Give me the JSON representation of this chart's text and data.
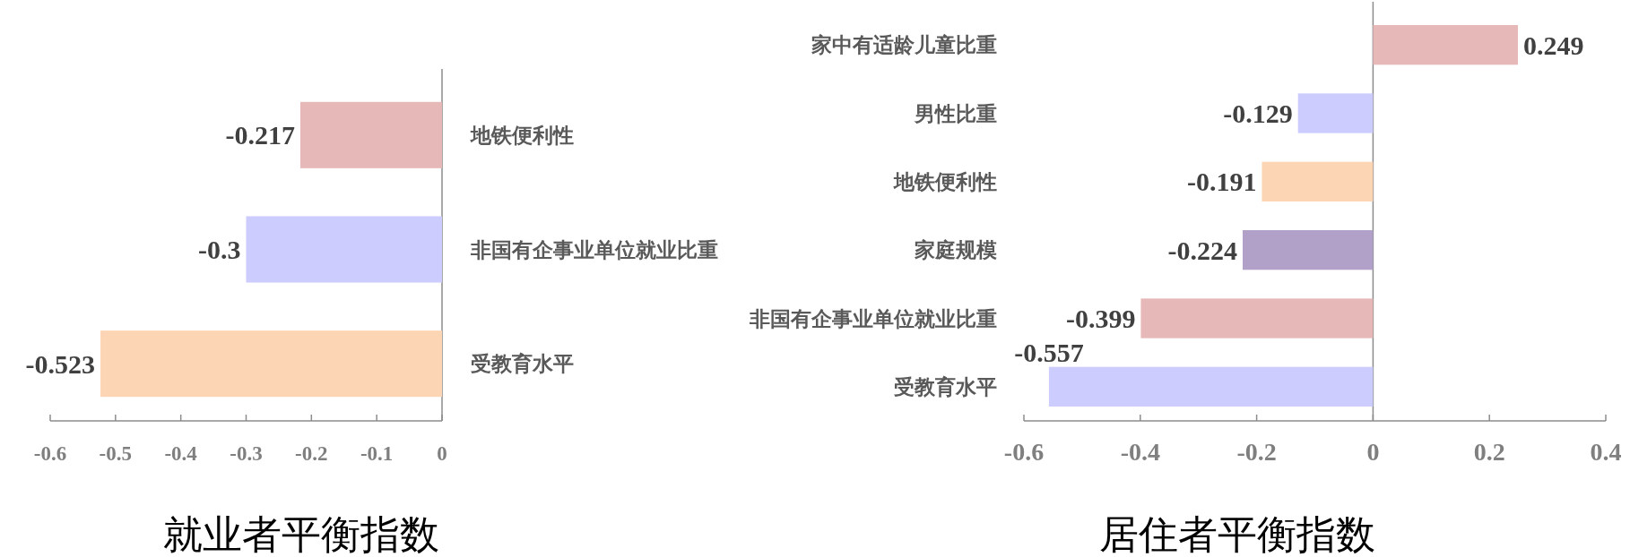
{
  "chart_data": [
    {
      "type": "bar",
      "orientation": "horizontal",
      "xlabel": "就业者平衡指数",
      "categories": [
        "地铁便利性",
        "非国有企事业单位就业比重",
        "受教育水平"
      ],
      "values": [
        -0.217,
        -0.3,
        -0.523
      ],
      "colors": [
        "#e6b8b7",
        "#ccccff",
        "#fcd5b4"
      ],
      "xlim": [
        -0.6,
        0
      ],
      "xticks": [
        -0.6,
        -0.5,
        -0.4,
        -0.3,
        -0.2,
        -0.1,
        0
      ],
      "data_labels": true
    },
    {
      "type": "bar",
      "orientation": "horizontal",
      "xlabel": "居住者平衡指数",
      "categories": [
        "家中有适龄儿童比重",
        "男性比重",
        "地铁便利性",
        "家庭规模",
        "非国有企事业单位就业比重",
        "受教育水平"
      ],
      "values": [
        0.249,
        -0.129,
        -0.191,
        -0.224,
        -0.399,
        -0.557
      ],
      "colors": [
        "#e6b8b7",
        "#ccccff",
        "#fcd5b4",
        "#b1a0c7",
        "#e6b8b7",
        "#ccccff"
      ],
      "xlim": [
        -0.6,
        0.4
      ],
      "xticks": [
        -0.6,
        -0.4,
        -0.2,
        0,
        0.2,
        0.4
      ],
      "data_labels": true
    }
  ]
}
